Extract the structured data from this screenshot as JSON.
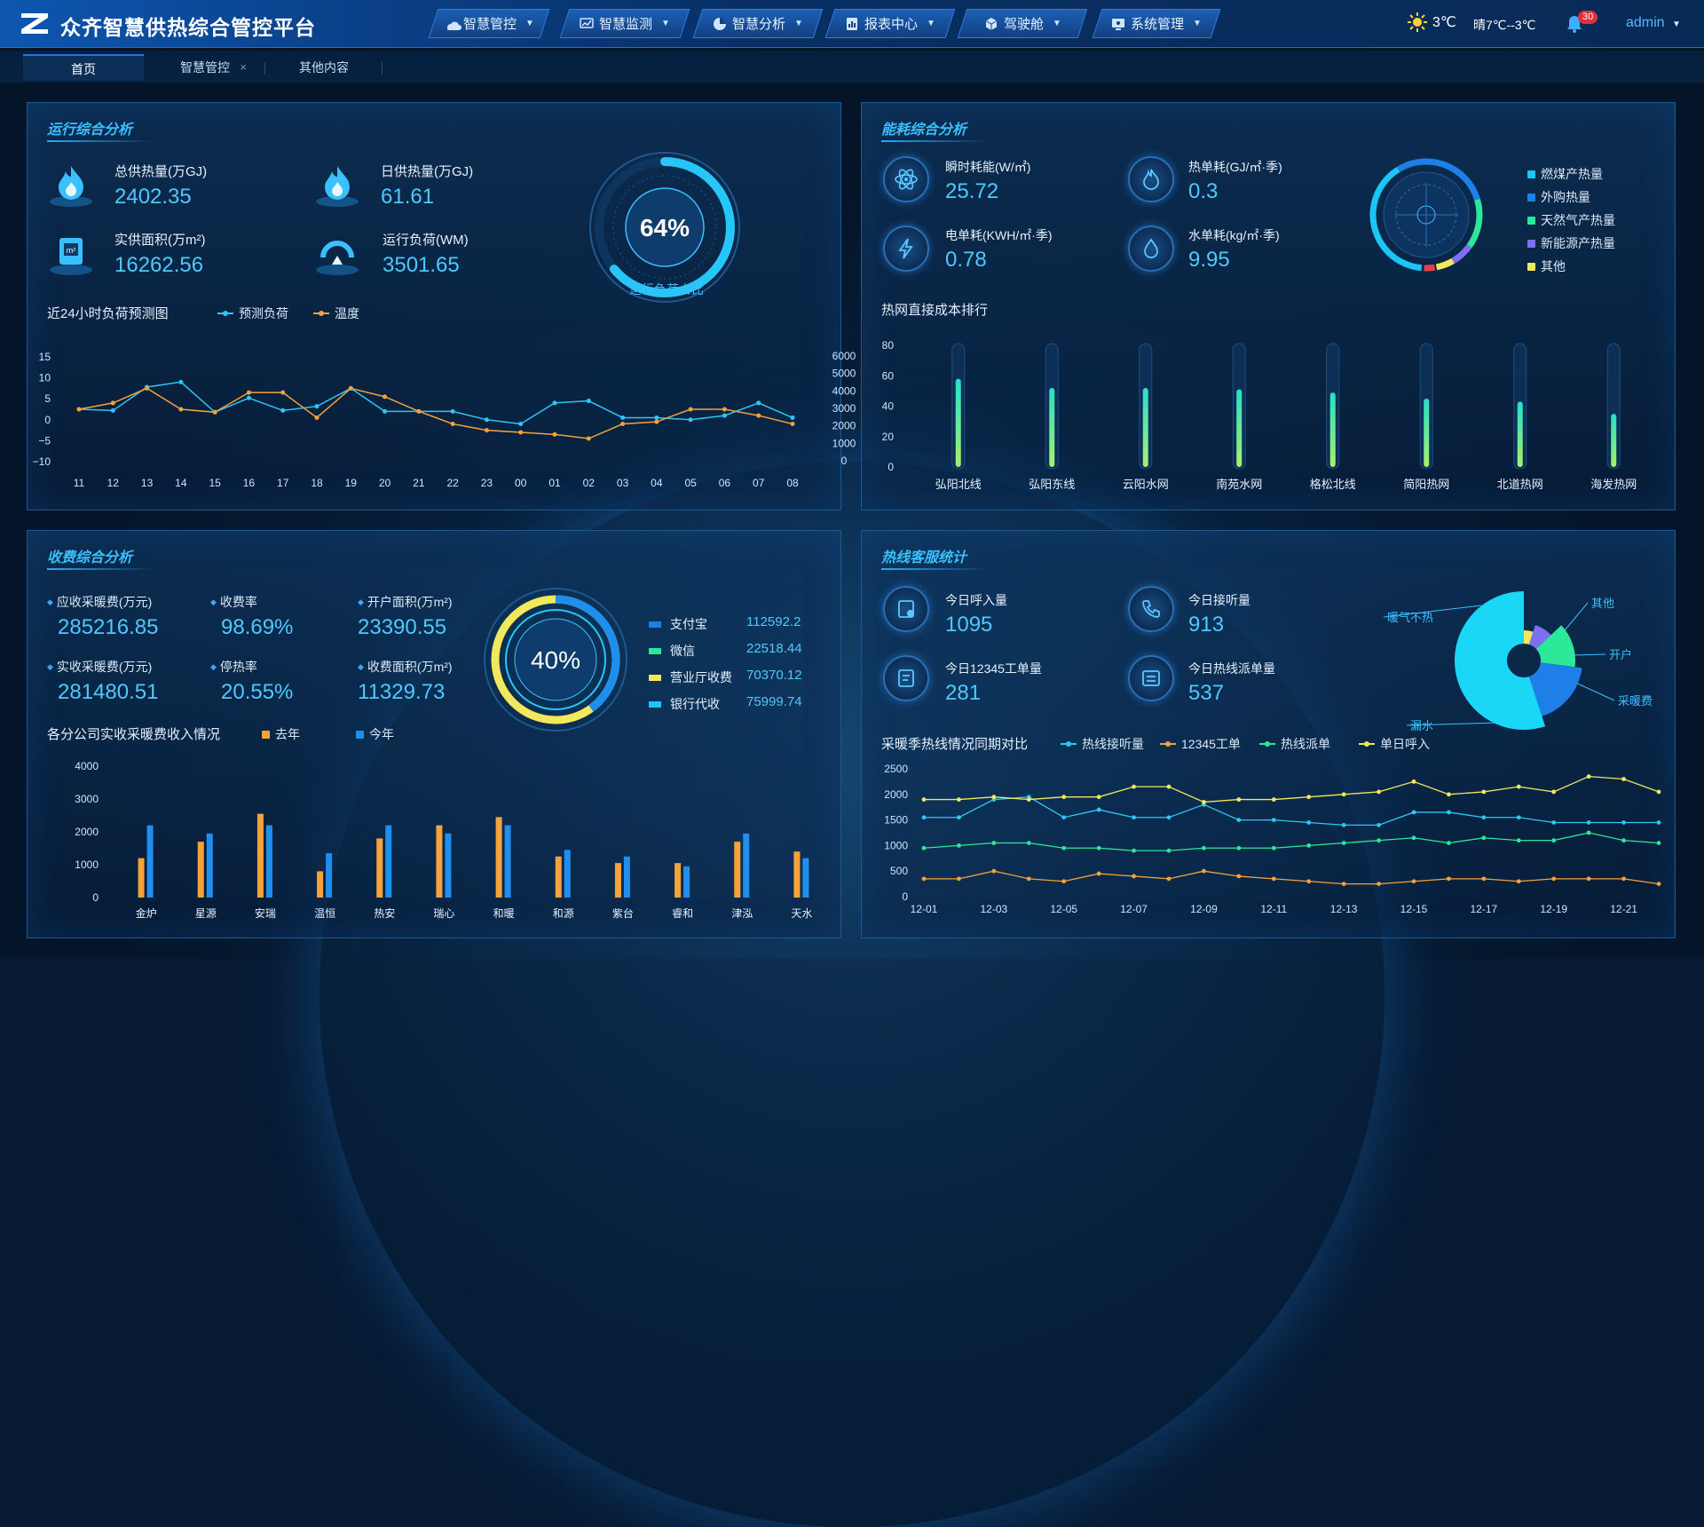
{
  "header": {
    "title": "众齐智慧供热综合管控平台",
    "nav": [
      {
        "label": "智慧管控",
        "icon": "cloud-icon"
      },
      {
        "label": "智慧监测",
        "icon": "chart-monitor-icon"
      },
      {
        "label": "智慧分析",
        "icon": "pie-icon"
      },
      {
        "label": "报表中心",
        "icon": "report-icon"
      },
      {
        "label": "驾驶舱",
        "icon": "cube-icon"
      },
      {
        "label": "系统管理",
        "icon": "settings-screen-icon"
      }
    ],
    "weather_temp": "3℃",
    "weather_desc": "晴7℃--3℃",
    "notifications": "30",
    "user": "admin"
  },
  "tabs": [
    {
      "label": "首页"
    },
    {
      "label": "智慧管控"
    },
    {
      "label": "其他内容"
    }
  ],
  "ops": {
    "title": "运行综合分析",
    "metrics": [
      {
        "label": "总供热量(万GJ)",
        "value": "2402.35"
      },
      {
        "label": "日供热量(万GJ)",
        "value": "61.61"
      },
      {
        "label": "实供面积(万m²)",
        "value": "16262.56"
      },
      {
        "label": "运行负荷(WM)",
        "value": "3501.65"
      }
    ],
    "gauge_value": "64%",
    "gauge_fraction": 0.64,
    "gauge_label": "运行负荷占比"
  },
  "energy": {
    "title": "能耗综合分析",
    "metrics": [
      {
        "label": "瞬时耗能(W/㎡)",
        "value": "25.72"
      },
      {
        "label": "热单耗(GJ/㎡·季)",
        "value": "0.3"
      },
      {
        "label": "电单耗(KWH/㎡·季)",
        "value": "0.78"
      },
      {
        "label": "水单耗(kg/㎡·季)",
        "value": "9.95"
      }
    ],
    "ring_legend": [
      {
        "name": "燃煤产热量",
        "color": "#19c6f5"
      },
      {
        "name": "外购热量",
        "color": "#1f7fe8"
      },
      {
        "name": "天然气产热量",
        "color": "#2ee89a"
      },
      {
        "name": "新能源产热量",
        "color": "#7b6ff2"
      },
      {
        "name": "其他",
        "color": "#f2e85c"
      }
    ]
  },
  "fees": {
    "title": "收费综合分析",
    "metrics": [
      {
        "label": "应收采暖费(万元)",
        "value": "285216.85"
      },
      {
        "label": "收费率",
        "value": "98.69%"
      },
      {
        "label": "开户面积(万m²)",
        "value": "23390.55"
      },
      {
        "label": "实收采暖费(万元)",
        "value": "281480.51"
      },
      {
        "label": "停热率",
        "value": "20.55%"
      },
      {
        "label": "收费面积(万m²)",
        "value": "11329.73"
      }
    ],
    "ring_value": "40%",
    "ring_fraction": 0.4,
    "payments": [
      {
        "label": "支付宝",
        "value": "112592.2",
        "color": "#1f7fe8"
      },
      {
        "label": "微信",
        "value": "22518.44",
        "color": "#2ee89a"
      },
      {
        "label": "营业厅收费",
        "value": "70370.12",
        "color": "#f2e85c"
      },
      {
        "label": "银行代收",
        "value": "75999.74",
        "color": "#19c6f5"
      }
    ]
  },
  "hotline": {
    "title": "热线客服统计",
    "metrics": [
      {
        "label": "今日呼入量",
        "value": "1095"
      },
      {
        "label": "今日接听量",
        "value": "913"
      },
      {
        "label": "今日12345工单量",
        "value": "281"
      },
      {
        "label": "今日热线派单量",
        "value": "537"
      }
    ]
  },
  "chart_data": [
    {
      "type": "line",
      "title": "近24小时负荷预测图",
      "x": [
        "11",
        "12",
        "13",
        "14",
        "15",
        "16",
        "17",
        "18",
        "19",
        "20",
        "21",
        "22",
        "23",
        "00",
        "01",
        "02",
        "03",
        "04",
        "05",
        "06",
        "07",
        "08"
      ],
      "y_left_ticks": [
        "15",
        "10",
        "5",
        "0",
        "−5",
        "−10"
      ],
      "y_right_ticks": [
        "6000",
        "5000",
        "4000",
        "3000",
        "2000",
        "1000",
        "0"
      ],
      "ylim_left": [
        -10,
        15
      ],
      "ylim_right": [
        0,
        6000
      ],
      "series": [
        {
          "name": "预测负荷",
          "color": "#2ec7f5",
          "axis": "left",
          "values": [
            2.5,
            2.2,
            7.8,
            9,
            1.8,
            5.2,
            2.2,
            3.2,
            7.5,
            2,
            2,
            2,
            0,
            -1,
            4,
            4.5,
            0.5,
            0.5,
            0,
            1,
            4,
            0.5
          ]
        },
        {
          "name": "温度",
          "color": "#f5a23a",
          "axis": "left",
          "values": [
            2.5,
            4,
            7.5,
            2.5,
            1.8,
            6.5,
            6.5,
            0.5,
            7.5,
            5.5,
            2,
            -1,
            -2.5,
            -3,
            -3.5,
            -4.5,
            -1,
            -0.5,
            2.5,
            2.5,
            1,
            -1
          ]
        }
      ]
    },
    {
      "type": "bar",
      "title": "热网直接成本排行",
      "categories": [
        "弘阳北线",
        "弘阳东线",
        "云阳水网",
        "南苑水网",
        "格松北线",
        "简阳热网",
        "北道热网",
        "海发热网"
      ],
      "values": [
        58,
        52,
        52,
        51,
        49,
        45,
        43,
        35
      ],
      "ylim": [
        0,
        80
      ],
      "y_ticks": [
        "80",
        "60",
        "40",
        "20",
        "0"
      ]
    },
    {
      "type": "pie",
      "title": "",
      "slices": [
        {
          "name": "其他",
          "value": 5,
          "color": "#f2e85c"
        },
        {
          "name": "开户",
          "value": 8,
          "color": "#7b6ff2"
        },
        {
          "name": "采暖费",
          "value": 14,
          "color": "#2ee89a"
        },
        {
          "name": "漏水",
          "value": 18,
          "color": "#1f7fe8"
        },
        {
          "name": "暖气不热",
          "value": 55,
          "color": "#19d7f5"
        }
      ]
    },
    {
      "type": "bar",
      "title": "各分公司实收采暖费收入情况",
      "categories": [
        "金炉",
        "星源",
        "安瑞",
        "温恒",
        "热安",
        "瑞心",
        "和暖",
        "和源",
        "紫台",
        "睿和",
        "津泓",
        "天水"
      ],
      "series": [
        {
          "name": "去年",
          "color": "#f5a23a",
          "values": [
            1200,
            1700,
            2550,
            800,
            1800,
            2200,
            2450,
            1250,
            1050,
            1050,
            1700,
            1400
          ]
        },
        {
          "name": "今年",
          "color": "#1f8fef",
          "values": [
            2200,
            1950,
            2200,
            1350,
            2200,
            1950,
            2200,
            1450,
            1250,
            950,
            1950,
            1200
          ]
        }
      ],
      "ylim": [
        0,
        4000
      ],
      "y_ticks": [
        "4000",
        "3000",
        "2000",
        "1000",
        "0"
      ]
    },
    {
      "type": "line",
      "title": "采暖季热线情况同期对比",
      "x": [
        "12-01",
        "12-02",
        "12-03",
        "12-04",
        "12-05",
        "12-06",
        "12-07",
        "12-08",
        "12-09",
        "12-10",
        "12-11",
        "12-12",
        "12-13",
        "12-14",
        "12-15",
        "12-16",
        "12-17",
        "12-18",
        "12-19",
        "12-20",
        "12-21",
        "12-22"
      ],
      "x_tick_labels": [
        "12-01",
        "12-03",
        "12-05",
        "12-07",
        "12-09",
        "12-11",
        "12-13",
        "12-15",
        "12-17",
        "12-19",
        "12-21"
      ],
      "ylim": [
        0,
        2500
      ],
      "y_ticks": [
        "2500",
        "2000",
        "1500",
        "1000",
        "500",
        "0"
      ],
      "series": [
        {
          "name": "热线接听量",
          "color": "#2ec7f5",
          "values": [
            1550,
            1550,
            1900,
            1950,
            1550,
            1700,
            1550,
            1550,
            1800,
            1500,
            1500,
            1450,
            1400,
            1400,
            1650,
            1650,
            1550,
            1550,
            1450,
            1450,
            1450,
            1450
          ]
        },
        {
          "name": "12345工单",
          "color": "#f5a23a",
          "values": [
            350,
            350,
            500,
            350,
            300,
            450,
            400,
            350,
            500,
            400,
            350,
            300,
            250,
            250,
            300,
            350,
            350,
            300,
            350,
            350,
            350,
            250
          ]
        },
        {
          "name": "热线派单",
          "color": "#2ee89a",
          "values": [
            950,
            1000,
            1050,
            1050,
            950,
            950,
            900,
            900,
            950,
            950,
            950,
            1000,
            1050,
            1100,
            1150,
            1050,
            1150,
            1100,
            1100,
            1250,
            1100,
            1050
          ]
        },
        {
          "name": "单日呼入",
          "color": "#f2e85c",
          "values": [
            1900,
            1900,
            1950,
            1900,
            1950,
            1950,
            2150,
            2150,
            1850,
            1900,
            1900,
            1950,
            2000,
            2050,
            2250,
            2000,
            2050,
            2150,
            2050,
            2350,
            2300,
            2050
          ]
        }
      ]
    }
  ]
}
